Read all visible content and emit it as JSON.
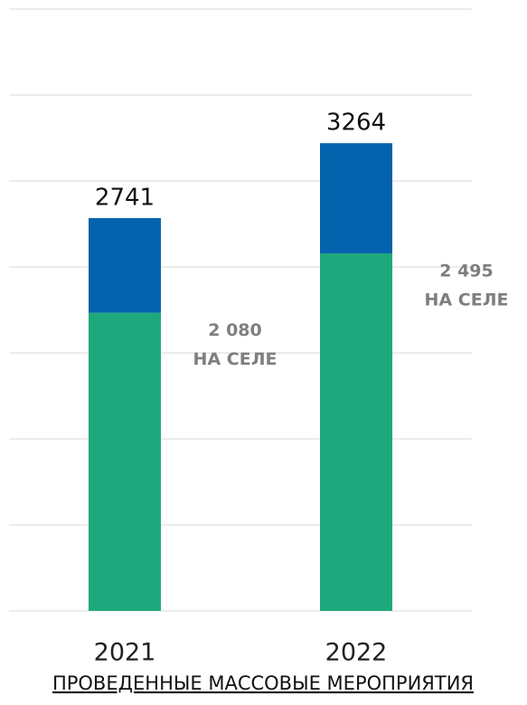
{
  "chart_data": {
    "type": "stacked_bar",
    "title": "ПРОВЕДЕННЫЕ МАССОВЫЕ МЕРОПРИЯТИЯ",
    "categories": [
      "2021",
      "2022"
    ],
    "series": [
      {
        "color": "#1ea97c",
        "values": [
          2080,
          2495
        ],
        "value_labels": [
          "2 080",
          "2 495"
        ]
      },
      {
        "color": "#0563ad",
        "values": [
          661,
          769
        ]
      }
    ],
    "totals": [
      2741,
      3264
    ],
    "annotation": "НА СЕЛЕ",
    "ylim": [
      0,
      4200
    ],
    "yticks": [
      0,
      600,
      1200,
      1800,
      2400,
      3000,
      3600,
      4200
    ],
    "grid": true
  }
}
